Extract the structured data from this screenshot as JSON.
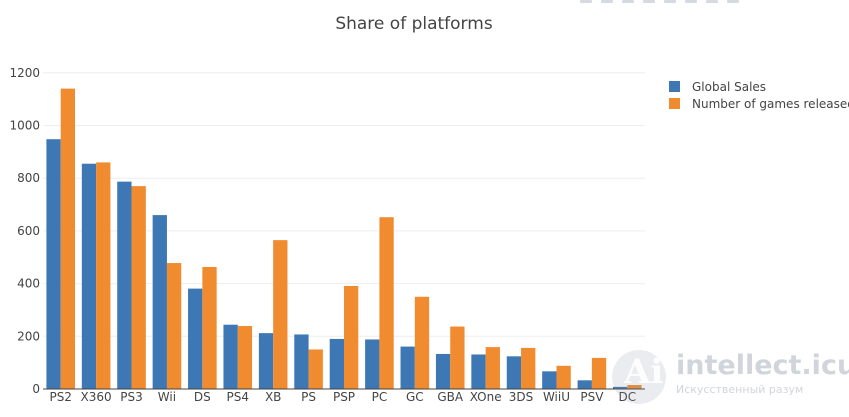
{
  "chart_data": {
    "type": "bar",
    "title": "Share of platforms",
    "xlabel": "",
    "ylabel": "",
    "categories": [
      "PS2",
      "X360",
      "PS3",
      "Wii",
      "DS",
      "PS4",
      "XB",
      "PS",
      "PSP",
      "PC",
      "GC",
      "GBA",
      "XOne",
      "3DS",
      "WiiU",
      "PSV",
      "DC"
    ],
    "series": [
      {
        "name": "Global Sales",
        "color": "#3d77b4",
        "values": [
          948,
          855,
          787,
          660,
          381,
          244,
          212,
          207,
          190,
          188,
          161,
          133,
          131,
          124,
          67,
          33,
          8
        ]
      },
      {
        "name": "Number of games released",
        "color": "#f08b30",
        "values": [
          1140,
          860,
          770,
          478,
          463,
          239,
          565,
          150,
          391,
          652,
          350,
          237,
          159,
          156,
          88,
          118,
          15
        ]
      }
    ],
    "ylim": [
      0,
      1260
    ],
    "yticks": [
      0,
      200,
      400,
      600,
      800,
      1000,
      1200
    ],
    "grid": true,
    "legend_position": "top-right"
  },
  "watermark": {
    "glyph": "Ai",
    "title": "intellect.icu",
    "subtitle": "Искусственный разум"
  }
}
